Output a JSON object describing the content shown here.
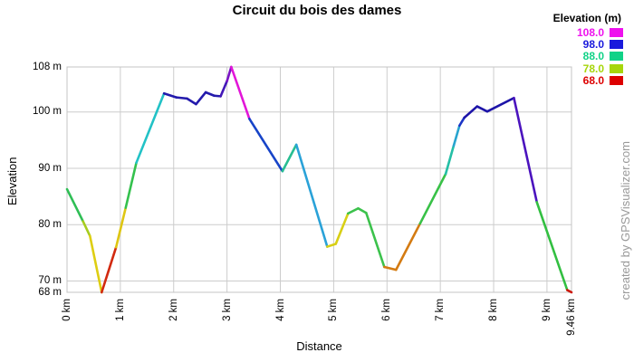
{
  "title": "Circuit du bois des dames",
  "watermark": "created by GPSVisualizer.com",
  "legend": {
    "title": "Elevation (m)",
    "entries": [
      {
        "label": "108.0",
        "color": "#EE11EE"
      },
      {
        "label": "98.0",
        "color": "#1A1ADC"
      },
      {
        "label": "88.0",
        "color": "#11D287"
      },
      {
        "label": "78.0",
        "color": "#A6D60A"
      },
      {
        "label": "68.0",
        "color": "#DD0000"
      }
    ]
  },
  "axes": {
    "x": {
      "label": "Distance",
      "unit": "km",
      "range": [
        0,
        9.46
      ],
      "ticks": [
        {
          "value": 0,
          "label": "0 km"
        },
        {
          "value": 1,
          "label": "1 km"
        },
        {
          "value": 2,
          "label": "2 km"
        },
        {
          "value": 3,
          "label": "3 km"
        },
        {
          "value": 4,
          "label": "4 km"
        },
        {
          "value": 5,
          "label": "5 km"
        },
        {
          "value": 6,
          "label": "6 km"
        },
        {
          "value": 7,
          "label": "7 km"
        },
        {
          "value": 8,
          "label": "8 km"
        },
        {
          "value": 9,
          "label": "9 km"
        },
        {
          "value": 9.46,
          "label": "9.46 km"
        }
      ]
    },
    "y": {
      "label": "Elevation",
      "unit": "m",
      "range": [
        68,
        108
      ],
      "ticks": [
        {
          "value": 108,
          "label": "108 m"
        },
        {
          "value": 100,
          "label": "100 m"
        },
        {
          "value": 90,
          "label": "90 m"
        },
        {
          "value": 80,
          "label": "80 m"
        },
        {
          "value": 70,
          "label": "70 m"
        },
        {
          "value": 68,
          "label": "68 m"
        }
      ]
    }
  },
  "chart_data": {
    "type": "line",
    "title": "Circuit du bois des dames",
    "xlabel": "Distance",
    "ylabel": "Elevation",
    "x_unit": "km",
    "y_unit": "m",
    "xlim": [
      0,
      9.46
    ],
    "ylim": [
      68,
      108
    ],
    "grid": true,
    "legend_position": "top-right",
    "color_encoding": "elevation rainbow (red=68m ... magenta=108m), color applies to segment starting at point",
    "points": [
      {
        "x": 0.0,
        "y": 86.3,
        "color": "#2FBE55"
      },
      {
        "x": 0.3,
        "y": 80.6,
        "color": "#A6CC1F"
      },
      {
        "x": 0.43,
        "y": 78.0,
        "color": "#DECE12"
      },
      {
        "x": 0.65,
        "y": 68.0,
        "color": "#D22A10"
      },
      {
        "x": 0.92,
        "y": 76.0,
        "color": "#DEC613"
      },
      {
        "x": 1.1,
        "y": 83.0,
        "color": "#34C14D"
      },
      {
        "x": 1.3,
        "y": 91.0,
        "color": "#22C2C6"
      },
      {
        "x": 1.82,
        "y": 103.3,
        "color": "#231AAC"
      },
      {
        "x": 2.05,
        "y": 102.6,
        "color": "#231AAC"
      },
      {
        "x": 2.25,
        "y": 102.4,
        "color": "#231AAC"
      },
      {
        "x": 2.42,
        "y": 101.4,
        "color": "#231AAC"
      },
      {
        "x": 2.6,
        "y": 103.5,
        "color": "#231AAC"
      },
      {
        "x": 2.76,
        "y": 102.9,
        "color": "#231AAC"
      },
      {
        "x": 2.88,
        "y": 102.8,
        "color": "#4318B8"
      },
      {
        "x": 3.0,
        "y": 105.5,
        "color": "#7A14C4"
      },
      {
        "x": 3.08,
        "y": 108.0,
        "color": "#E216D8"
      },
      {
        "x": 3.42,
        "y": 98.8,
        "color": "#1744C8"
      },
      {
        "x": 4.04,
        "y": 89.5,
        "color": "#28BE92"
      },
      {
        "x": 4.3,
        "y": 94.2,
        "color": "#2AA2D8"
      },
      {
        "x": 4.88,
        "y": 76.1,
        "color": "#D8CF15"
      },
      {
        "x": 5.04,
        "y": 76.6,
        "color": "#D8CF15"
      },
      {
        "x": 5.27,
        "y": 82.0,
        "color": "#3CC24C"
      },
      {
        "x": 5.46,
        "y": 82.9,
        "color": "#3CC24C"
      },
      {
        "x": 5.61,
        "y": 82.1,
        "color": "#3CC24C"
      },
      {
        "x": 5.95,
        "y": 72.5,
        "color": "#D47B12"
      },
      {
        "x": 6.17,
        "y": 72.0,
        "color": "#D47B12"
      },
      {
        "x": 6.62,
        "y": 80.2,
        "color": "#38C147"
      },
      {
        "x": 7.1,
        "y": 89.0,
        "color": "#24BFA6"
      },
      {
        "x": 7.25,
        "y": 94.0,
        "color": "#28A4CF"
      },
      {
        "x": 7.36,
        "y": 97.6,
        "color": "#1C35C6"
      },
      {
        "x": 7.45,
        "y": 99.0,
        "color": "#1D14A8"
      },
      {
        "x": 7.69,
        "y": 101.0,
        "color": "#1D14A8"
      },
      {
        "x": 7.88,
        "y": 100.1,
        "color": "#1D14A8"
      },
      {
        "x": 8.38,
        "y": 102.5,
        "color": "#4B13BE"
      },
      {
        "x": 8.81,
        "y": 84.0,
        "color": "#32BF41"
      },
      {
        "x": 9.38,
        "y": 68.4,
        "color": "#CC1708"
      },
      {
        "x": 9.46,
        "y": 68.0,
        "color": null
      }
    ]
  },
  "colors": {
    "background": "#ffffff",
    "grid": "#cccccc",
    "axis": "#c4c4c4",
    "text": "#000000",
    "watermark": "#999999"
  }
}
